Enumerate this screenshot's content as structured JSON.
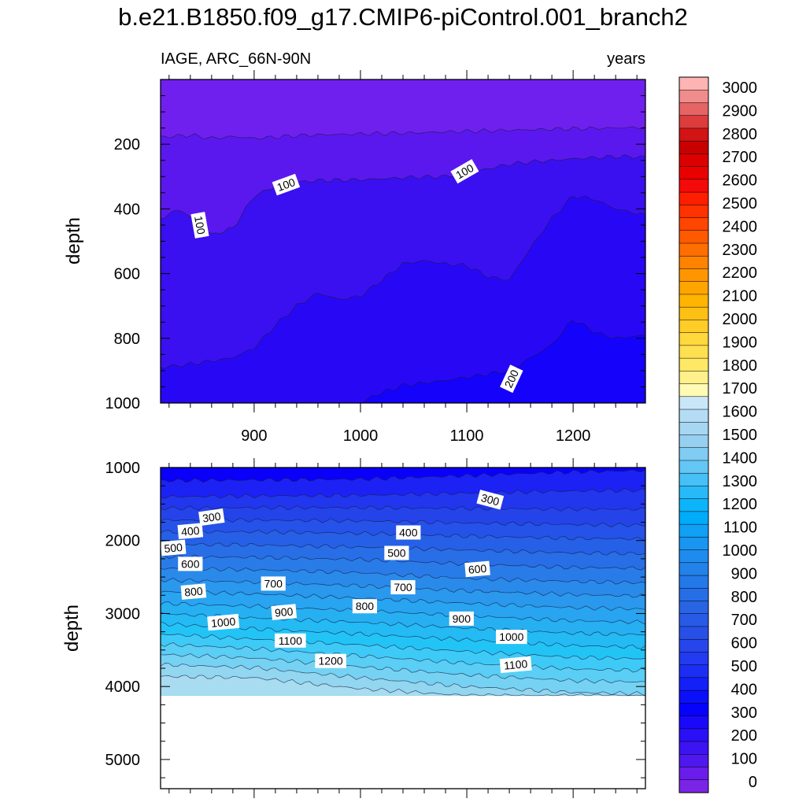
{
  "figure": {
    "title": "b.e21.B1850.f09_g17.CMIP6-piControl.001_branch2",
    "left_string": "IAGE, ARC_66N-90N",
    "right_string": "years"
  },
  "chart_data": [
    {
      "type": "contour",
      "panel": "upper",
      "variable": "IAGE",
      "region": "ARC_66N-90N",
      "units": "years",
      "xlabel": "",
      "ylabel": "depth",
      "xlim": [
        812,
        1268
      ],
      "ylim": [
        1000,
        0
      ],
      "x_ticks": [
        900,
        1000,
        1100,
        1200
      ],
      "y_ticks": [
        200,
        400,
        600,
        800,
        1000
      ],
      "contour_interval": 50,
      "fill_above_deepest": "#7020EE",
      "contours": [
        {
          "level": 50,
          "fill_below": "#5A18EE",
          "depth": [
            [
              812,
              178
            ],
            [
              840,
              172
            ],
            [
              860,
              182
            ],
            [
              880,
              176
            ],
            [
              900,
              182
            ],
            [
              950,
              172
            ],
            [
              1000,
              168
            ],
            [
              1050,
              165
            ],
            [
              1100,
              160
            ],
            [
              1150,
              156
            ],
            [
              1200,
              152
            ],
            [
              1268,
              148
            ]
          ]
        },
        {
          "level": 100,
          "fill_below": "#3A10F0",
          "depth": [
            [
              812,
              430
            ],
            [
              830,
              400
            ],
            [
              845,
              440
            ],
            [
              860,
              480
            ],
            [
              880,
              460
            ],
            [
              900,
              360
            ],
            [
              920,
              330
            ],
            [
              940,
              318
            ],
            [
              960,
              312
            ],
            [
              1000,
              310
            ],
            [
              1050,
              302
            ],
            [
              1080,
              300
            ],
            [
              1100,
              290
            ],
            [
              1120,
              276
            ],
            [
              1140,
              262
            ],
            [
              1160,
              255
            ],
            [
              1200,
              245
            ],
            [
              1240,
              238
            ],
            [
              1268,
              240
            ]
          ]
        },
        {
          "level": 150,
          "fill_below": "#2808F4",
          "depth": [
            [
              812,
              890
            ],
            [
              840,
              880
            ],
            [
              860,
              870
            ],
            [
              880,
              860
            ],
            [
              900,
              830
            ],
            [
              920,
              760
            ],
            [
              940,
              700
            ],
            [
              960,
              660
            ],
            [
              980,
              680
            ],
            [
              1000,
              670
            ],
            [
              1020,
              620
            ],
            [
              1040,
              570
            ],
            [
              1060,
              560
            ],
            [
              1080,
              570
            ],
            [
              1100,
              575
            ],
            [
              1120,
              610
            ],
            [
              1140,
              620
            ],
            [
              1160,
              520
            ],
            [
              1180,
              430
            ],
            [
              1200,
              360
            ],
            [
              1220,
              370
            ],
            [
              1240,
              400
            ],
            [
              1268,
              420
            ]
          ]
        },
        {
          "level": 200,
          "fill_below": "#1402FA",
          "depth": [
            [
              1003,
              1000
            ],
            [
              1010,
              980
            ],
            [
              1040,
              945
            ],
            [
              1080,
              930
            ],
            [
              1120,
              910
            ],
            [
              1140,
              900
            ],
            [
              1160,
              860
            ],
            [
              1180,
              820
            ],
            [
              1200,
              740
            ],
            [
              1220,
              780
            ],
            [
              1240,
              800
            ],
            [
              1268,
              790
            ]
          ]
        }
      ],
      "contour_labels": [
        {
          "text": "100",
          "x": 930,
          "y": 325,
          "angle": -20
        },
        {
          "text": "100",
          "x": 849,
          "y": 450,
          "angle": 80
        },
        {
          "text": "100",
          "x": 1098,
          "y": 284,
          "angle": -30
        },
        {
          "text": "200",
          "x": 1142,
          "y": 925,
          "angle": -65
        }
      ]
    },
    {
      "type": "contour",
      "panel": "lower",
      "variable": "IAGE",
      "region": "ARC_66N-90N",
      "units": "years",
      "xlabel": "",
      "ylabel": "depth",
      "xlim": [
        812,
        1268
      ],
      "ylim": [
        5400,
        1000
      ],
      "y_ticks": [
        1000,
        2000,
        3000,
        4000,
        5000
      ],
      "bottom_of_data": 4125,
      "fill_above_shallowest": "#0A00FA",
      "contours": [
        {
          "level": 300,
          "fill_below": "#1C22F4",
          "depth": [
            [
              812,
              1180
            ],
            [
              900,
              1170
            ],
            [
              1000,
              1160
            ],
            [
              1100,
              1110
            ],
            [
              1200,
              1060
            ],
            [
              1268,
              1040
            ]
          ]
        },
        {
          "level": 350,
          "fill_below": "#2236EE",
          "depth": [
            [
              812,
              1400
            ],
            [
              900,
              1390
            ],
            [
              1000,
              1380
            ],
            [
              1100,
              1350
            ],
            [
              1200,
              1320
            ],
            [
              1268,
              1310
            ]
          ]
        },
        {
          "level": 400,
          "fill_below": "#2444EA",
          "depth": [
            [
              812,
              1560
            ],
            [
              900,
              1550
            ],
            [
              1000,
              1550
            ],
            [
              1100,
              1560
            ],
            [
              1200,
              1570
            ],
            [
              1268,
              1570
            ]
          ]
        },
        {
          "level": 450,
          "fill_below": "#2552E8",
          "depth": [
            [
              812,
              1720
            ],
            [
              900,
              1720
            ],
            [
              1000,
              1730
            ],
            [
              1100,
              1760
            ],
            [
              1200,
              1780
            ],
            [
              1268,
              1790
            ]
          ]
        },
        {
          "level": 500,
          "fill_below": "#2660E6",
          "depth": [
            [
              812,
              1880
            ],
            [
              900,
              1880
            ],
            [
              1000,
              1900
            ],
            [
              1100,
              1940
            ],
            [
              1200,
              1970
            ],
            [
              1268,
              1980
            ]
          ]
        },
        {
          "level": 550,
          "fill_below": "#286EE6",
          "depth": [
            [
              812,
              2050
            ],
            [
              900,
              2060
            ],
            [
              1000,
              2090
            ],
            [
              1100,
              2130
            ],
            [
              1200,
              2170
            ],
            [
              1268,
              2180
            ]
          ]
        },
        {
          "level": 600,
          "fill_below": "#297CE8",
          "depth": [
            [
              812,
              2220
            ],
            [
              900,
              2230
            ],
            [
              1000,
              2260
            ],
            [
              1100,
              2320
            ],
            [
              1200,
              2370
            ],
            [
              1268,
              2380
            ]
          ]
        },
        {
          "level": 650,
          "fill_below": "#2A8AEA",
          "depth": [
            [
              812,
              2380
            ],
            [
              900,
              2400
            ],
            [
              1000,
              2440
            ],
            [
              1100,
              2520
            ],
            [
              1200,
              2560
            ],
            [
              1268,
              2580
            ]
          ]
        },
        {
          "level": 700,
          "fill_below": "#2A98EC",
          "depth": [
            [
              812,
              2540
            ],
            [
              900,
              2570
            ],
            [
              1000,
              2620
            ],
            [
              1100,
              2690
            ],
            [
              1200,
              2740
            ],
            [
              1268,
              2760
            ]
          ]
        },
        {
          "level": 750,
          "fill_below": "#28A4F0",
          "depth": [
            [
              812,
              2700
            ],
            [
              900,
              2730
            ],
            [
              1000,
              2790
            ],
            [
              1100,
              2860
            ],
            [
              1200,
              2920
            ],
            [
              1268,
              2940
            ]
          ]
        },
        {
          "level": 800,
          "fill_below": "#26B0F2",
          "depth": [
            [
              812,
              2860
            ],
            [
              900,
              2900
            ],
            [
              1000,
              2960
            ],
            [
              1100,
              3030
            ],
            [
              1200,
              3100
            ],
            [
              1268,
              3120
            ]
          ]
        },
        {
          "level": 850,
          "fill_below": "#24BAF4",
          "depth": [
            [
              812,
              3000
            ],
            [
              900,
              3060
            ],
            [
              1000,
              3120
            ],
            [
              1100,
              3200
            ],
            [
              1200,
              3270
            ],
            [
              1268,
              3290
            ]
          ]
        },
        {
          "level": 900,
          "fill_below": "#22C4F6",
          "depth": [
            [
              812,
              3140
            ],
            [
              900,
              3210
            ],
            [
              1000,
              3280
            ],
            [
              1100,
              3360
            ],
            [
              1200,
              3440
            ],
            [
              1268,
              3460
            ]
          ]
        },
        {
          "level": 950,
          "fill_below": "#3ECAF6",
          "depth": [
            [
              812,
              3280
            ],
            [
              900,
              3350
            ],
            [
              1000,
              3430
            ],
            [
              1100,
              3520
            ],
            [
              1200,
              3600
            ],
            [
              1268,
              3620
            ]
          ]
        },
        {
          "level": 1000,
          "fill_below": "#5ACEF4",
          "depth": [
            [
              812,
              3420
            ],
            [
              900,
              3480
            ],
            [
              1000,
              3580
            ],
            [
              1100,
              3680
            ],
            [
              1200,
              3760
            ],
            [
              1268,
              3780
            ]
          ]
        },
        {
          "level": 1050,
          "fill_below": "#76D2F2",
          "depth": [
            [
              812,
              3560
            ],
            [
              900,
              3610
            ],
            [
              1000,
              3730
            ],
            [
              1100,
              3840
            ],
            [
              1200,
              3920
            ],
            [
              1268,
              3940
            ]
          ]
        },
        {
          "level": 1100,
          "fill_below": "#92D6F0",
          "depth": [
            [
              812,
              3700
            ],
            [
              900,
              3740
            ],
            [
              1000,
              3880
            ],
            [
              1100,
              4000
            ],
            [
              1200,
              4080
            ],
            [
              1268,
              4100
            ]
          ]
        },
        {
          "level": 1150,
          "fill_below": "#A8DCF0",
          "depth": [
            [
              812,
              3860
            ],
            [
              900,
              3880
            ],
            [
              1000,
              4030
            ],
            [
              1100,
              4125
            ],
            [
              1200,
              4125
            ],
            [
              1268,
              4125
            ]
          ]
        }
      ],
      "contour_labels": [
        {
          "text": "300",
          "x": 860,
          "y": 1680,
          "angle": -8
        },
        {
          "text": "300",
          "x": 1122,
          "y": 1440,
          "angle": 15
        },
        {
          "text": "400",
          "x": 840,
          "y": 1870,
          "angle": -5
        },
        {
          "text": "400",
          "x": 1045,
          "y": 1890,
          "angle": 0
        },
        {
          "text": "500",
          "x": 824,
          "y": 2100,
          "angle": -5
        },
        {
          "text": "500",
          "x": 1034,
          "y": 2170,
          "angle": 0
        },
        {
          "text": "600",
          "x": 840,
          "y": 2320,
          "angle": 0
        },
        {
          "text": "600",
          "x": 1110,
          "y": 2390,
          "angle": -5
        },
        {
          "text": "700",
          "x": 918,
          "y": 2590,
          "angle": 0
        },
        {
          "text": "700",
          "x": 1040,
          "y": 2640,
          "angle": 0
        },
        {
          "text": "800",
          "x": 843,
          "y": 2700,
          "angle": -5
        },
        {
          "text": "800",
          "x": 1004,
          "y": 2900,
          "angle": 0
        },
        {
          "text": "900",
          "x": 928,
          "y": 2980,
          "angle": -5
        },
        {
          "text": "900",
          "x": 1095,
          "y": 3070,
          "angle": 0
        },
        {
          "text": "1000",
          "x": 871,
          "y": 3120,
          "angle": -5
        },
        {
          "text": "1000",
          "x": 1142,
          "y": 3320,
          "angle": 0
        },
        {
          "text": "1100",
          "x": 934,
          "y": 3370,
          "angle": 0
        },
        {
          "text": "1100",
          "x": 1146,
          "y": 3700,
          "angle": -5
        },
        {
          "text": "1200",
          "x": 972,
          "y": 3650,
          "angle": 0
        }
      ]
    }
  ],
  "colorbar": {
    "labels": [
      "3000",
      "2900",
      "2800",
      "2700",
      "2600",
      "2500",
      "2400",
      "2300",
      "2200",
      "2100",
      "2000",
      "1900",
      "1800",
      "1700",
      "1600",
      "1500",
      "1400",
      "1300",
      "1200",
      "1100",
      "1000",
      "900",
      "800",
      "700",
      "600",
      "500",
      "400",
      "300",
      "200",
      "100",
      "0"
    ],
    "colors": [
      "#FFB4B4",
      "#F08C8C",
      "#E66464",
      "#DC3C3C",
      "#D21414",
      "#C80000",
      "#DC0000",
      "#EB0000",
      "#F50A0A",
      "#FF1E00",
      "#FF3200",
      "#FF4600",
      "#FF5A00",
      "#FF6E00",
      "#FF8200",
      "#FF9600",
      "#FFA500",
      "#FFB400",
      "#FFC014",
      "#FFCC28",
      "#FFD83C",
      "#FFE050",
      "#FFE864",
      "#FFF08C",
      "#FFFAB4",
      "#C8E6F8",
      "#B4DCF4",
      "#A6D6F2",
      "#96D0F0",
      "#80CCF2",
      "#64C6F4",
      "#46C0F6",
      "#28BAF8",
      "#0CB4FA",
      "#00ACFA",
      "#10A0F6",
      "#1896F2",
      "#1E8CEE",
      "#2282EA",
      "#2478E8",
      "#266EE6",
      "#2864E4",
      "#285AE6",
      "#2850E8",
      "#2646EC",
      "#223AF0",
      "#1C2EF4",
      "#1420F8",
      "#0A10FA",
      "#0602FC",
      "#1A08FA",
      "#2A10F6",
      "#3C14F2",
      "#4E18EE",
      "#6A1CEA",
      "#7A24E6"
    ]
  }
}
